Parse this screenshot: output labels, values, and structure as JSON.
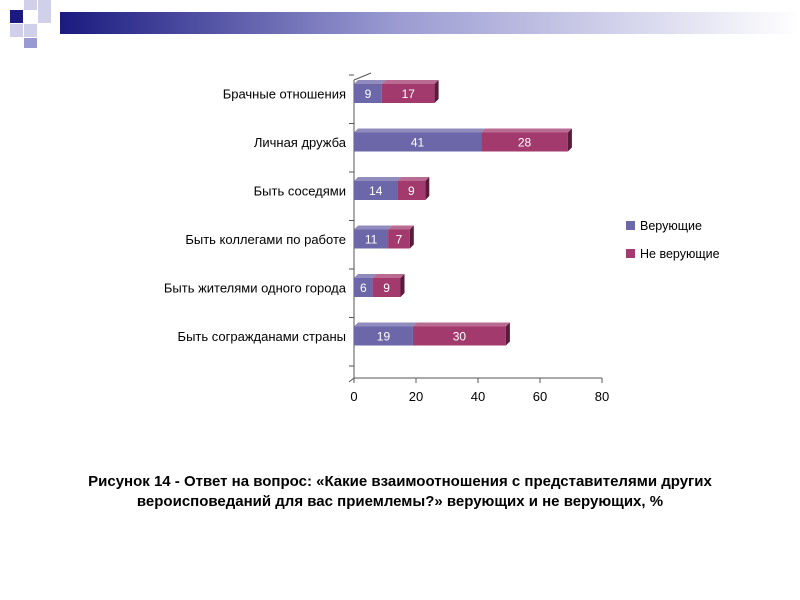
{
  "colors": {
    "series1": "#6b67a8",
    "series2": "#a33a6e",
    "deco_navy": "#1a1a80",
    "deco_lavender": "#9a9ad2",
    "deco_light": "#d0d0ea"
  },
  "chart_data": {
    "type": "bar",
    "orientation": "horizontal",
    "stacked": true,
    "categories": [
      "Брачные отношения",
      "Личная дружба",
      "Быть соседями",
      "Быть коллегами по работе",
      "Быть жителями одного города",
      "Быть согражданами страны"
    ],
    "series": [
      {
        "name": "Верующие",
        "values": [
          9,
          41,
          14,
          11,
          6,
          19
        ]
      },
      {
        "name": "Не верующие",
        "values": [
          17,
          28,
          9,
          7,
          9,
          30
        ]
      }
    ],
    "xlim": [
      0,
      80
    ],
    "xticks": [
      0,
      20,
      40,
      60,
      80
    ],
    "grid": false,
    "legend_position": "right"
  },
  "caption": "Рисунок 14 - Ответ на вопрос: «Какие взаимоотношения с представителями других вероисповеданий для вас приемлемы?» верующих и не верующих, %"
}
